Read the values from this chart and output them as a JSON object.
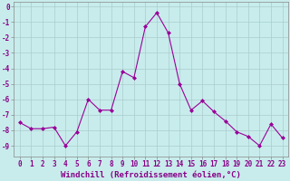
{
  "x": [
    0,
    1,
    2,
    3,
    4,
    5,
    6,
    7,
    8,
    9,
    10,
    11,
    12,
    13,
    14,
    15,
    16,
    17,
    18,
    19,
    20,
    21,
    22,
    23
  ],
  "y": [
    -7.5,
    -7.9,
    -7.9,
    -7.8,
    -9.0,
    -8.1,
    -6.0,
    -6.7,
    -6.7,
    -4.2,
    -4.6,
    -1.3,
    -0.4,
    -1.7,
    -5.0,
    -6.7,
    -6.1,
    -6.8,
    -7.4,
    -8.1,
    -8.4,
    -9.0,
    -7.6,
    -8.5
  ],
  "line_color": "#990099",
  "marker": "D",
  "marker_size": 2.0,
  "xlabel": "Windchill (Refroidissement éolien,°C)",
  "xlabel_fontsize": 6.5,
  "bg_color": "#c8ecec",
  "grid_color": "#aacccc",
  "xlim": [
    -0.5,
    23.5
  ],
  "ylim": [
    -9.7,
    0.3
  ],
  "yticks": [
    0,
    -1,
    -2,
    -3,
    -4,
    -5,
    -6,
    -7,
    -8,
    -9
  ],
  "xticks": [
    0,
    1,
    2,
    3,
    4,
    5,
    6,
    7,
    8,
    9,
    10,
    11,
    12,
    13,
    14,
    15,
    16,
    17,
    18,
    19,
    20,
    21,
    22,
    23
  ],
  "tick_fontsize": 5.5,
  "label_color": "#880088",
  "spine_color": "#888888"
}
